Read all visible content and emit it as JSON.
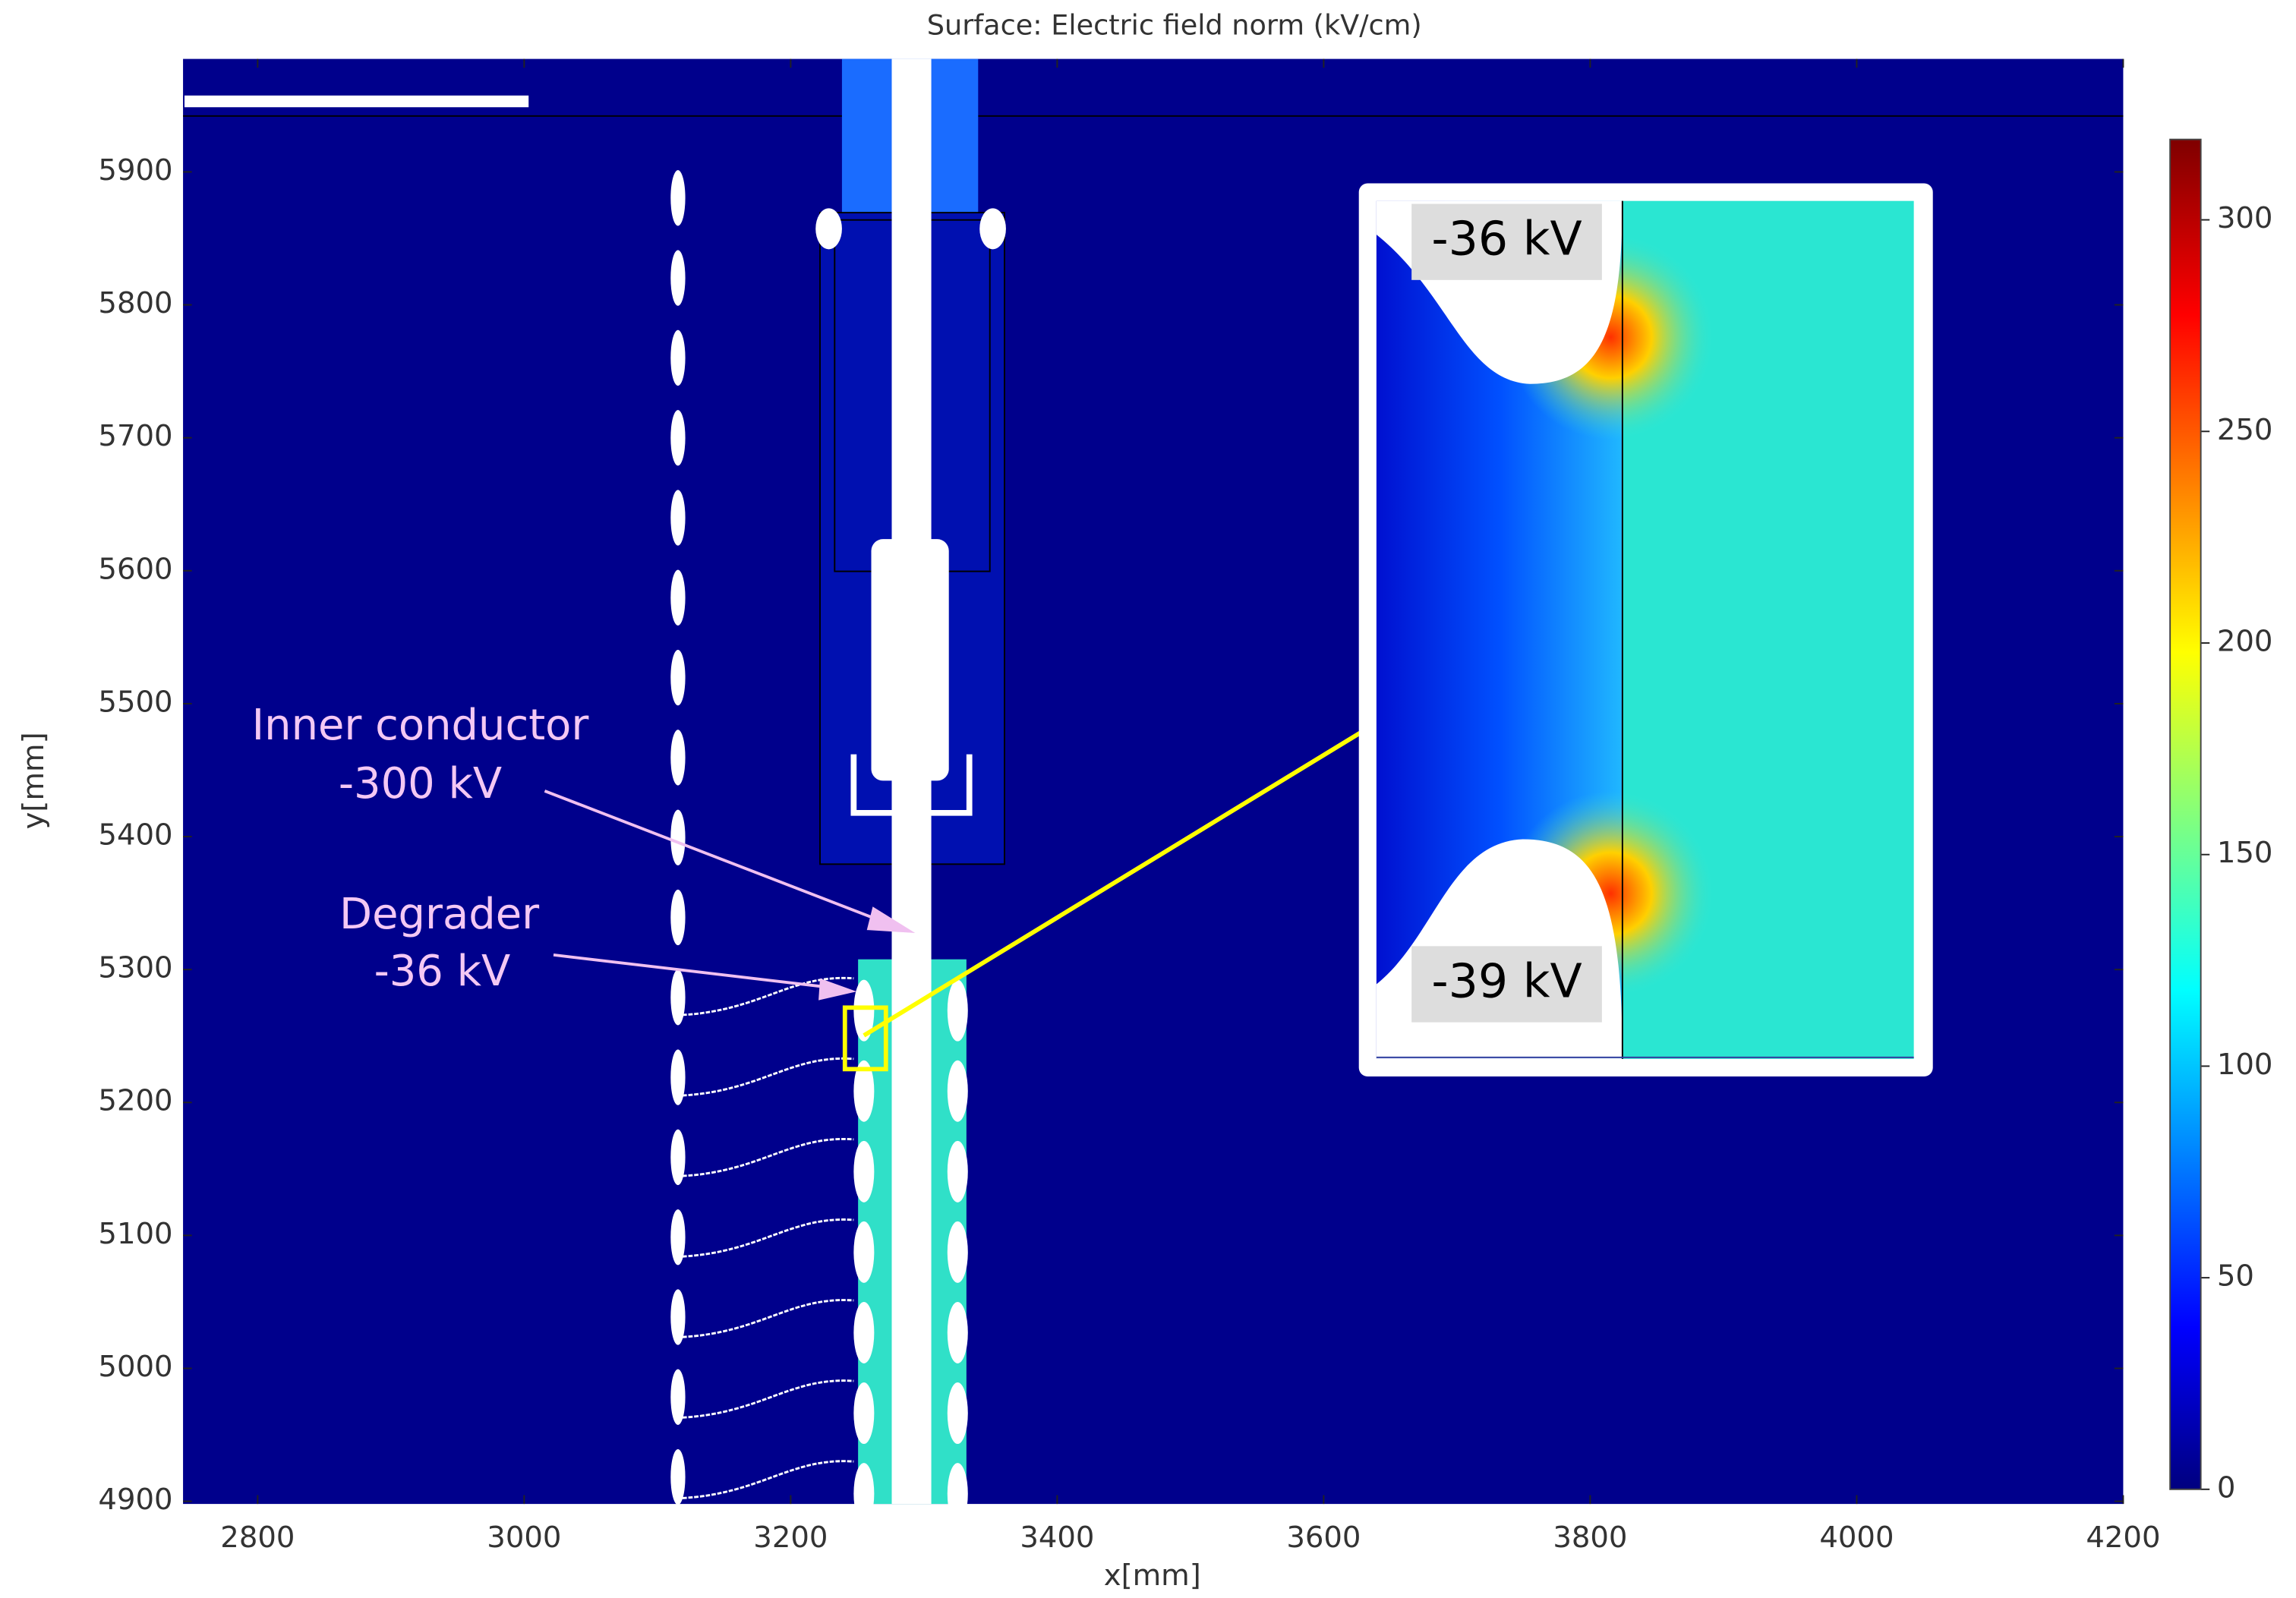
{
  "chart_data": {
    "type": "surface",
    "title": "Surface: Electric field norm (kV/cm)",
    "x_label": "x[mm]",
    "y_label": "y[mm]",
    "xlim": [
      2744,
      4200
    ],
    "xticks": [
      2800,
      3000,
      3200,
      3400,
      3600,
      3800,
      4000,
      4200
    ],
    "ylim": [
      4898,
      5985
    ],
    "yticks": [
      4900,
      5000,
      5100,
      5200,
      5300,
      5400,
      5500,
      5600,
      5700,
      5800,
      5900
    ],
    "clim": [
      0,
      319
    ],
    "cticks": [
      0,
      50,
      100,
      150,
      200,
      250,
      300
    ],
    "annotations": [
      "Inner conductor",
      "-300 kV",
      "Degrader",
      "-36 kV"
    ],
    "inset_labels": [
      "-36 kV",
      "-39 kV"
    ]
  }
}
